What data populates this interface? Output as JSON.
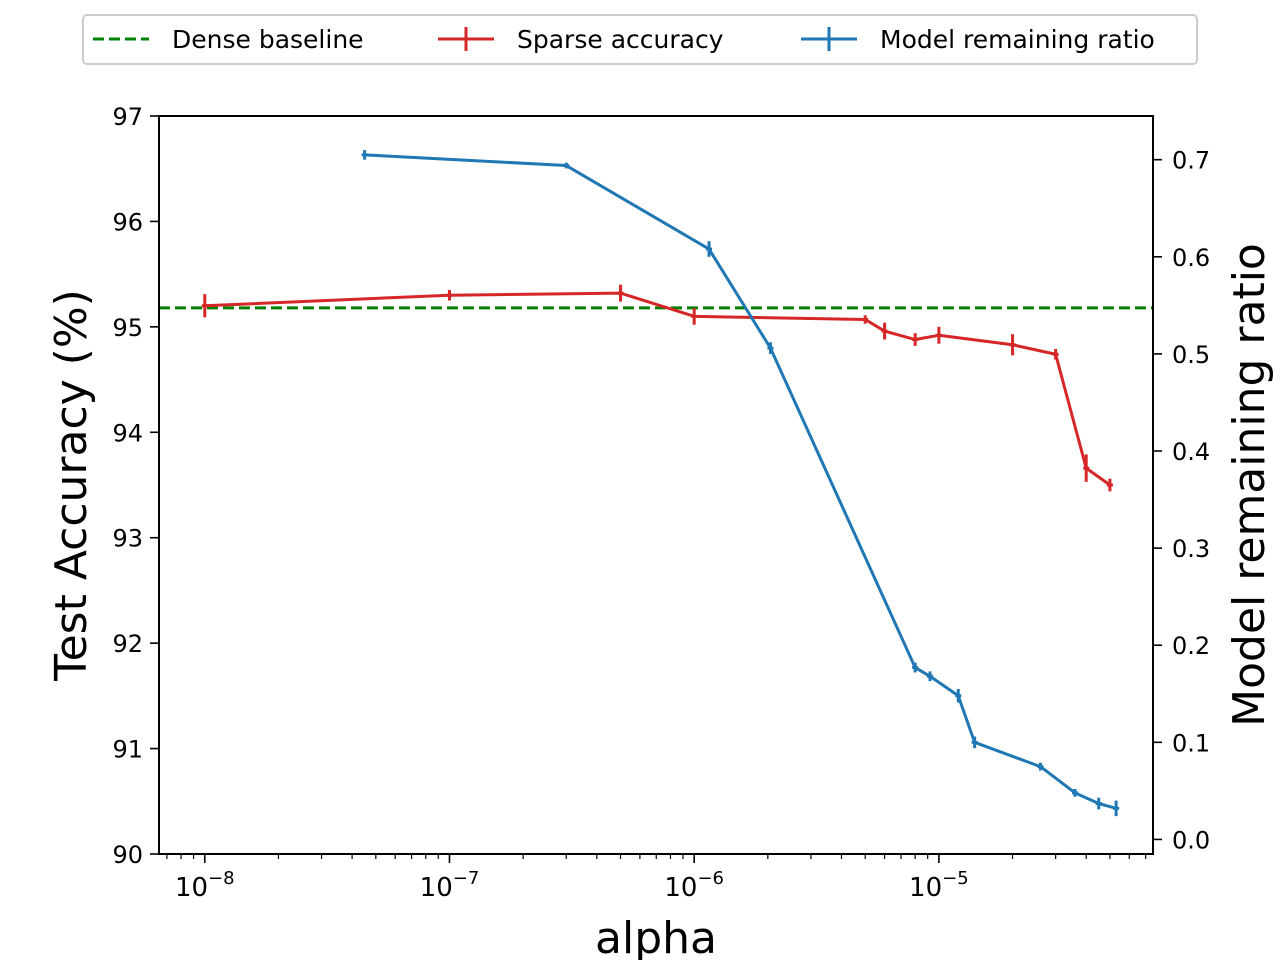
{
  "chart_data": {
    "type": "line",
    "xscale": "log",
    "xlabel": "alpha",
    "ylabel_left": "Test Accuracy (%)",
    "ylabel_right": "Model remaining ratio",
    "xlim": [
      6.5e-09,
      7.5e-05
    ],
    "ylim_left": [
      90,
      97
    ],
    "ylim_right": [
      -0.015,
      0.745
    ],
    "x_ticks": [
      {
        "value": 1e-08,
        "base": "10",
        "exp": "−8"
      },
      {
        "value": 1e-07,
        "base": "10",
        "exp": "−7"
      },
      {
        "value": 1e-06,
        "base": "10",
        "exp": "−6"
      },
      {
        "value": 1e-05,
        "base": "10",
        "exp": "−5"
      }
    ],
    "y_ticks_left": [
      "90",
      "91",
      "92",
      "93",
      "94",
      "95",
      "96",
      "97"
    ],
    "y_ticks_right": [
      "0.0",
      "0.1",
      "0.2",
      "0.3",
      "0.4",
      "0.5",
      "0.6",
      "0.7"
    ],
    "legend": {
      "position": "top-center-outside",
      "entries": [
        {
          "label": "Dense baseline",
          "style": "dashed",
          "color": "#008000"
        },
        {
          "label": "Sparse accuracy",
          "style": "errorbar",
          "color": "#d62728"
        },
        {
          "label": "Model remaining ratio",
          "style": "errorbar",
          "color": "#1f77b4"
        }
      ]
    },
    "series": [
      {
        "name": "Dense baseline",
        "axis": "left",
        "color": "#008000",
        "type": "hline",
        "y": 95.18
      },
      {
        "name": "Sparse accuracy",
        "axis": "left",
        "color": "#d62728",
        "points": [
          {
            "x": 1e-08,
            "y": 95.2,
            "err": 0.11
          },
          {
            "x": 1e-07,
            "y": 95.3,
            "err": 0.05
          },
          {
            "x": 5e-07,
            "y": 95.32,
            "err": 0.08
          },
          {
            "x": 1e-06,
            "y": 95.1,
            "err": 0.08
          },
          {
            "x": 5e-06,
            "y": 95.07,
            "err": 0.04
          },
          {
            "x": 6e-06,
            "y": 94.96,
            "err": 0.08
          },
          {
            "x": 8e-06,
            "y": 94.88,
            "err": 0.06
          },
          {
            "x": 1e-05,
            "y": 94.92,
            "err": 0.08
          },
          {
            "x": 2e-05,
            "y": 94.83,
            "err": 0.1
          },
          {
            "x": 3e-05,
            "y": 94.74,
            "err": 0.05
          },
          {
            "x": 4e-05,
            "y": 93.66,
            "err": 0.13
          },
          {
            "x": 5e-05,
            "y": 93.5,
            "err": 0.06
          }
        ]
      },
      {
        "name": "Model remaining ratio",
        "axis": "right",
        "color": "#1f77b4",
        "points": [
          {
            "x": 4.5e-08,
            "y": 0.705,
            "err": 0.005
          },
          {
            "x": 3e-07,
            "y": 0.694,
            "err": 0.003
          },
          {
            "x": 1.15e-06,
            "y": 0.608,
            "err": 0.008
          },
          {
            "x": 2.05e-06,
            "y": 0.506,
            "err": 0.006
          },
          {
            "x": 8e-06,
            "y": 0.177,
            "err": 0.005
          },
          {
            "x": 9.2e-06,
            "y": 0.168,
            "err": 0.005
          },
          {
            "x": 1.2e-05,
            "y": 0.148,
            "err": 0.007
          },
          {
            "x": 1.4e-05,
            "y": 0.1,
            "err": 0.006
          },
          {
            "x": 2.6e-05,
            "y": 0.075,
            "err": 0.004
          },
          {
            "x": 3.6e-05,
            "y": 0.048,
            "err": 0.004
          },
          {
            "x": 4.5e-05,
            "y": 0.037,
            "err": 0.006
          },
          {
            "x": 5.3e-05,
            "y": 0.032,
            "err": 0.008
          }
        ]
      }
    ]
  }
}
